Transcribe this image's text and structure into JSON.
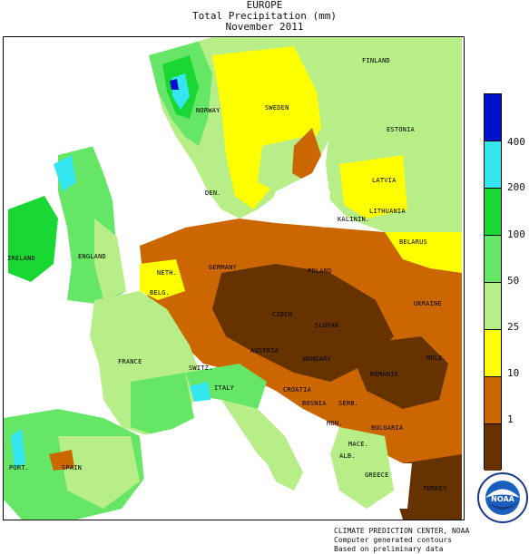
{
  "title": {
    "line1": "EUROPE",
    "line2": "Total Precipitation (mm)",
    "line3": "November 2011"
  },
  "legend": {
    "bands": [
      {
        "label": "400",
        "color": "#0011cc"
      },
      {
        "label": "200",
        "color": "#33e6ef"
      },
      {
        "label": "100",
        "color": "#19d834"
      },
      {
        "label": "50",
        "color": "#66e666"
      },
      {
        "label": "25",
        "color": "#b7ee88"
      },
      {
        "label": "10",
        "color": "#ffff00"
      },
      {
        "label": "1",
        "color": "#cc6600"
      },
      {
        "label": "",
        "color": "#663300"
      }
    ]
  },
  "country_labels": {
    "finland": "FINLAND",
    "norway": "NORWAY",
    "sweden": "SWEDEN",
    "estonia": "ESTONIA",
    "latvia": "LATVIA",
    "lithuania": "LITHUANIA",
    "kaliningrad": "KALININ.",
    "belarus": "BELARUS",
    "denmark": "DEN.",
    "ireland": "IRELAND",
    "england": "ENGLAND",
    "netherlands": "NETH.",
    "belgium": "BELG.",
    "germany": "GERMANY",
    "poland": "POLAND",
    "ukraine": "UKRAINE",
    "czech": "CZECH",
    "slovakia": "SLOVAK",
    "austria": "AUSTRIA",
    "hungary": "HUNGARY",
    "moldova": "MOLD.",
    "romania": "ROMANIA",
    "france": "FRANCE",
    "switzerland": "SWITZ.",
    "italy": "ITALY",
    "croatia": "CROATIA",
    "bosnia": "BOSNIA",
    "serbia": "SERB.",
    "bulgaria": "BULGARIA",
    "montenegro": "MON.",
    "macedonia": "MACE.",
    "albania": "ALB.",
    "greece": "GREECE",
    "turkey": "TURKEY",
    "portugal": "PORT.",
    "spain": "SPAIN"
  },
  "credit": {
    "line1": "CLIMATE PREDICTION CENTER, NOAA",
    "line2": "Computer generated contours",
    "line3": "Based on preliminary data"
  },
  "logo": {
    "center_text": "NOAA"
  }
}
